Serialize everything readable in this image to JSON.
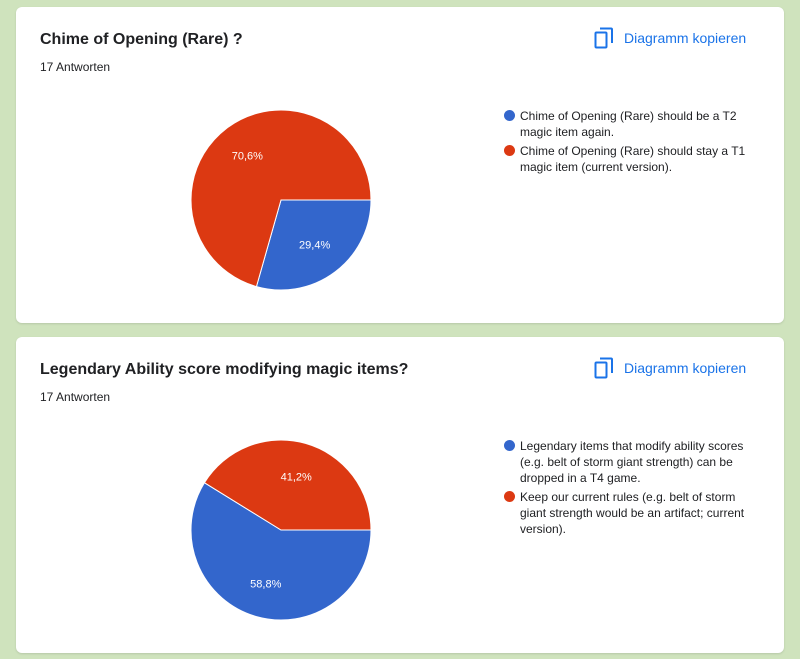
{
  "page": {
    "background": "#cfe3bd"
  },
  "copy_label": "Diagramm kopieren",
  "colors": {
    "blue": "#3366cc",
    "red": "#dc3912",
    "link": "#1a73e8"
  },
  "chart_data": [
    {
      "type": "pie",
      "title": "Chime of Opening (Rare) ?",
      "subtitle": "17 Antworten",
      "slices": [
        {
          "label": "Chime of Opening (Rare) should be a T2 magic item again.",
          "value": 29.4,
          "display": "29,4%",
          "color": "#3366cc"
        },
        {
          "label": "Chime of Opening (Rare) should stay a T1 magic item (current version).",
          "value": 70.6,
          "display": "70,6%",
          "color": "#dc3912"
        }
      ],
      "legend_position": "right"
    },
    {
      "type": "pie",
      "title": "Legendary Ability score modifying magic items?",
      "subtitle": "17 Antworten",
      "slices": [
        {
          "label": "Legendary items that modify ability scores (e.g. belt of storm giant strength) can be dropped in a T4 game.",
          "value": 58.8,
          "display": "58,8%",
          "color": "#3366cc"
        },
        {
          "label": "Keep our current rules (e.g. belt of storm giant strength would be an artifact; current version).",
          "value": 41.2,
          "display": "41,2%",
          "color": "#dc3912"
        }
      ],
      "legend_position": "right"
    }
  ]
}
